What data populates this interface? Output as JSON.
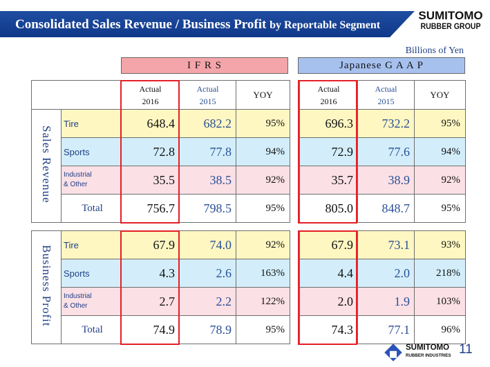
{
  "header": {
    "title_main": "Consolidated Sales Revenue / Business Profit",
    "title_sub": "by Reportable Segment",
    "logo_line1": "SUMITOMO",
    "logo_line2": "RUBBER GROUP"
  },
  "unit": "Billions of Yen",
  "standards": {
    "ifrs": "I F R S",
    "jgaap": "Japanese G A A P"
  },
  "columns": {
    "actual": "Actual",
    "y2016": "2016",
    "y2015": "2015",
    "yoy": "YOY"
  },
  "sales": {
    "group_label": "Sales Revenue",
    "rows": [
      {
        "segment": "Tire",
        "ifrs": [
          "648.4",
          "682.2",
          "95%"
        ],
        "jgaap": [
          "696.3",
          "732.2",
          "95%"
        ]
      },
      {
        "segment": "Sports",
        "ifrs": [
          "72.8",
          "77.8",
          "94%"
        ],
        "jgaap": [
          "72.9",
          "77.6",
          "94%"
        ]
      },
      {
        "segment_line1": "Industrial",
        "segment_line2": "& Other",
        "ifrs": [
          "35.5",
          "38.5",
          "92%"
        ],
        "jgaap": [
          "35.7",
          "38.9",
          "92%"
        ]
      },
      {
        "segment": "Total",
        "ifrs": [
          "756.7",
          "798.5",
          "95%"
        ],
        "jgaap": [
          "805.0",
          "848.7",
          "95%"
        ]
      }
    ]
  },
  "profit": {
    "group_label": "Business Profit",
    "rows": [
      {
        "segment": "Tire",
        "ifrs": [
          "67.9",
          "74.0",
          "92%"
        ],
        "jgaap": [
          "67.9",
          "73.1",
          "93%"
        ]
      },
      {
        "segment": "Sports",
        "ifrs": [
          "4.3",
          "2.6",
          "163%"
        ],
        "jgaap": [
          "4.4",
          "2.0",
          "218%"
        ]
      },
      {
        "segment_line1": "Industrial",
        "segment_line2": "& Other",
        "ifrs": [
          "2.7",
          "2.2",
          "122%"
        ],
        "jgaap": [
          "2.0",
          "1.9",
          "103%"
        ]
      },
      {
        "segment": "Total",
        "ifrs": [
          "74.9",
          "78.9",
          "95%"
        ],
        "jgaap": [
          "74.3",
          "77.1",
          "96%"
        ]
      }
    ]
  },
  "footer": {
    "logo_line1": "SUMITOMO",
    "logo_line2": "RUBBER INDUSTRIES",
    "page_number": "11"
  }
}
